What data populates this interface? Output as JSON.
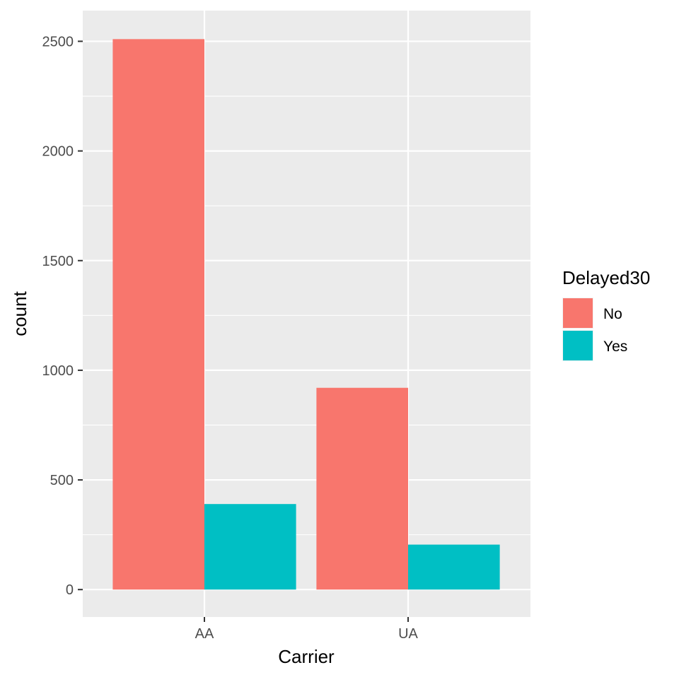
{
  "chart_data": {
    "type": "bar",
    "position": "dodge",
    "categories": [
      "AA",
      "UA"
    ],
    "series": [
      {
        "name": "No",
        "color": "#F8766D",
        "values": [
          2510,
          920
        ]
      },
      {
        "name": "Yes",
        "color": "#00BFC4",
        "values": [
          390,
          205
        ]
      }
    ],
    "xlabel": "Carrier",
    "ylabel": "count",
    "ylim": [
      -125,
      2640
    ],
    "yticks": [
      0,
      500,
      1000,
      1500,
      2000,
      2500
    ],
    "legend": {
      "title": "Delayed30",
      "placement": "right"
    },
    "grid": true,
    "panel_background": "#EBEBEB",
    "grid_color": "#FFFFFF"
  }
}
